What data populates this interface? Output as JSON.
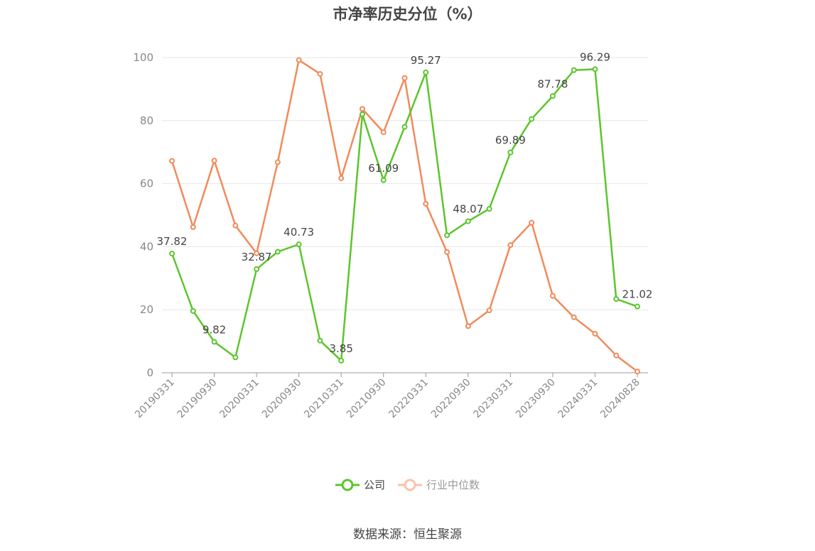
{
  "chart_data": {
    "type": "line",
    "title": "市净率历史分位（%）",
    "xlabel": "",
    "ylabel": "",
    "ylim": [
      0,
      100
    ],
    "yticks": [
      0,
      20,
      40,
      60,
      80,
      100
    ],
    "grid": true,
    "legend_position": "bottom",
    "x": [
      "20190331",
      "20190630",
      "20190930",
      "20191231",
      "20200331",
      "20200630",
      "20200930",
      "20201231",
      "20210331",
      "20210630",
      "20210930",
      "20211231",
      "20220331",
      "20220630",
      "20220930",
      "20221231",
      "20230331",
      "20230630",
      "20230930",
      "20231231",
      "20240331",
      "20240630",
      "20240828"
    ],
    "xtick_labels": [
      "20190331",
      "20190930",
      "20200331",
      "20200930",
      "20210331",
      "20210930",
      "20220331",
      "20220930",
      "20230331",
      "20230930",
      "20240331",
      "20240828"
    ],
    "series": [
      {
        "name": "公司",
        "color": "#5cc52c",
        "values": [
          37.82,
          19.6,
          9.82,
          4.9,
          32.87,
          38.4,
          40.73,
          10.2,
          3.85,
          82.0,
          61.09,
          78.0,
          95.27,
          43.6,
          48.07,
          52.0,
          69.89,
          80.5,
          87.78,
          96.0,
          96.29,
          23.4,
          21.02
        ],
        "data_labels": {
          "0": "37.82",
          "2": "9.82",
          "4": "32.87",
          "6": "40.73",
          "8": "3.85",
          "10": "61.09",
          "12": "95.27",
          "14": "48.07",
          "16": "69.89",
          "18": "87.78",
          "20": "96.29",
          "22": "21.02"
        }
      },
      {
        "name": "行业中位数",
        "color": "#f28a5b",
        "values": [
          67.2,
          46.2,
          67.3,
          46.7,
          37.9,
          66.8,
          99.2,
          94.8,
          61.7,
          83.7,
          76.3,
          93.5,
          53.6,
          38.3,
          14.8,
          19.8,
          40.5,
          47.6,
          24.4,
          17.6,
          12.4,
          5.5,
          0.4
        ]
      }
    ]
  },
  "source_text": "数据来源：恒生聚源"
}
